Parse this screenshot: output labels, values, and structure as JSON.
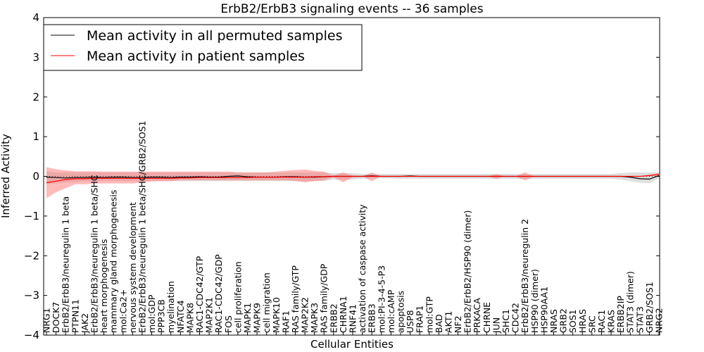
{
  "chart_data": {
    "type": "line",
    "title": "ErbB2/ErbB3 signaling events -- 36 samples",
    "xlabel": "Cellular Entities",
    "ylabel": "Inferred Activity",
    "ylim": [
      -4,
      4
    ],
    "yticks": [
      "4",
      "3",
      "2",
      "1",
      "0",
      "−1",
      "−2",
      "−3",
      "−4"
    ],
    "grid": false,
    "legend_position": "top-left",
    "categories": [
      "NRG1",
      "DOCK7",
      "ErbB2/ErbB3/neuregulin 1 beta",
      "PTPN11",
      "JAK2",
      "ErbB2/ErbB3/neuregulin 1 beta/SHC",
      "heart morphogenesis",
      "mammary gland morphogenesis",
      "mol:Ca2+",
      "nervous system development",
      "ErbB2/ErbB3/neuregulin 1 beta/SHC/GRB2/SOS1",
      "mol:GDP",
      "PPP3CB",
      "myelination",
      "NFATC4",
      "MAPK8",
      "RAC1-CDC42/GTP",
      "MAP2K1",
      "RAC1-CDC42/GDP",
      "FOS",
      "cell proliferation",
      "MAPK1",
      "MAPK9",
      "cell migration",
      "MAPK10",
      "RAF1",
      "RAS family/GTP",
      "MAP2K2",
      "MAPK3",
      "RAS family/GDP",
      "ERBB2",
      "CHRNA1",
      "RNF41",
      "activation of caspase activity",
      "ERBB3",
      "mol:PI-3-4-5-P3",
      "mol:cAMP",
      "apoptosis",
      "USP8",
      "FRAP1",
      "mol:GTP",
      "BAD",
      "AKT1",
      "NF2",
      "ErbB2/ErbB2/HSP90 (dimer)",
      "PRKACA",
      "CHRNE",
      "JUN",
      "SHC1",
      "CDC42",
      "ErbB2/ErbB3/neuregulin 2",
      "HSP90 (dimer)",
      "HSP90AA1",
      "NRAS",
      "GRB2",
      "SOS1",
      "HRAS",
      "SRC",
      "RAC1",
      "KRAS",
      "ERBB2IP",
      "STAT3 (dimer)",
      "STAT3",
      "GRB2/SOS1",
      "NRG2"
    ],
    "series": [
      {
        "name": "Mean activity in all permuted samples",
        "color": "#000000",
        "values": [
          -0.02,
          -0.03,
          -0.04,
          -0.03,
          -0.03,
          -0.02,
          -0.03,
          -0.02,
          -0.02,
          -0.03,
          -0.03,
          -0.02,
          -0.02,
          -0.03,
          -0.02,
          -0.02,
          -0.01,
          -0.02,
          -0.02,
          0.0,
          0.01,
          -0.01,
          -0.02,
          -0.02,
          -0.02,
          -0.01,
          -0.01,
          -0.02,
          -0.02,
          -0.01,
          0.0,
          0.0,
          0.0,
          0.0,
          0.01,
          0.0,
          0.0,
          0.0,
          0.01,
          0.0,
          0.0,
          0.0,
          0.0,
          0.0,
          0.0,
          0.0,
          0.0,
          0.0,
          0.0,
          0.0,
          0.0,
          0.0,
          0.0,
          0.0,
          0.0,
          0.0,
          0.0,
          0.0,
          0.0,
          0.0,
          0.0,
          -0.02,
          -0.06,
          -0.07,
          0.02
        ],
        "band_low": [
          -0.2,
          -0.18,
          -0.15,
          -0.14,
          -0.13,
          -0.12,
          -0.12,
          -0.12,
          -0.12,
          -0.12,
          -0.12,
          -0.12,
          -0.12,
          -0.12,
          -0.12,
          -0.12,
          -0.12,
          -0.12,
          -0.12,
          -0.12,
          -0.12,
          -0.12,
          -0.12,
          -0.12,
          -0.12,
          -0.12,
          -0.12,
          -0.12,
          -0.12,
          -0.12,
          -0.08,
          -0.08,
          -0.08,
          -0.06,
          -0.05,
          -0.05,
          -0.05,
          -0.06,
          -0.06,
          -0.06,
          -0.06,
          -0.06,
          -0.06,
          -0.06,
          -0.06,
          -0.06,
          -0.06,
          -0.06,
          -0.06,
          -0.06,
          -0.06,
          -0.06,
          -0.06,
          -0.06,
          -0.06,
          -0.06,
          -0.06,
          -0.06,
          -0.06,
          -0.06,
          -0.08,
          -0.12,
          -0.16,
          -0.17,
          -0.05
        ],
        "band_high": [
          0.12,
          0.1,
          0.1,
          0.1,
          0.1,
          0.1,
          0.1,
          0.1,
          0.1,
          0.1,
          0.1,
          0.1,
          0.1,
          0.1,
          0.1,
          0.1,
          0.1,
          0.1,
          0.1,
          0.1,
          0.1,
          0.1,
          0.1,
          0.1,
          0.1,
          0.1,
          0.1,
          0.1,
          0.1,
          0.1,
          0.08,
          0.08,
          0.08,
          0.06,
          0.06,
          0.06,
          0.06,
          0.06,
          0.06,
          0.06,
          0.06,
          0.06,
          0.06,
          0.06,
          0.06,
          0.06,
          0.06,
          0.06,
          0.06,
          0.06,
          0.06,
          0.06,
          0.06,
          0.06,
          0.06,
          0.06,
          0.06,
          0.06,
          0.06,
          0.06,
          0.08,
          0.1,
          0.1,
          0.1,
          0.1
        ]
      },
      {
        "name": "Mean activity in patient samples",
        "color": "#ff0000",
        "values": [
          -0.16,
          -0.12,
          -0.08,
          -0.06,
          -0.06,
          -0.05,
          -0.05,
          -0.05,
          -0.05,
          -0.05,
          -0.05,
          -0.05,
          -0.05,
          -0.05,
          -0.04,
          -0.04,
          -0.03,
          -0.03,
          -0.03,
          -0.03,
          -0.03,
          -0.03,
          -0.02,
          -0.02,
          -0.02,
          -0.02,
          -0.02,
          -0.02,
          -0.01,
          -0.01,
          0.0,
          0.0,
          0.0,
          0.0,
          0.0,
          0.0,
          0.0,
          0.0,
          0.0,
          0.0,
          0.0,
          0.0,
          0.0,
          0.0,
          0.0,
          0.0,
          0.0,
          0.0,
          0.0,
          0.0,
          0.0,
          0.0,
          0.0,
          0.0,
          0.0,
          0.0,
          0.0,
          0.0,
          0.0,
          0.0,
          0.0,
          0.0,
          0.0,
          0.02,
          0.05
        ],
        "band_low": [
          -0.55,
          -0.4,
          -0.3,
          -0.2,
          -0.2,
          -0.18,
          -0.18,
          -0.18,
          -0.18,
          -0.18,
          -0.15,
          -0.13,
          -0.12,
          -0.12,
          -0.1,
          -0.1,
          -0.1,
          -0.1,
          -0.1,
          -0.1,
          -0.1,
          -0.1,
          -0.1,
          -0.1,
          -0.1,
          -0.1,
          -0.12,
          -0.15,
          -0.12,
          -0.1,
          -0.02,
          -0.15,
          -0.02,
          0.0,
          -0.12,
          0.0,
          0.0,
          0.0,
          0.0,
          0.0,
          0.0,
          0.0,
          0.0,
          0.0,
          0.0,
          0.0,
          0.0,
          -0.06,
          0.0,
          0.0,
          -0.1,
          0.0,
          0.0,
          0.0,
          0.0,
          0.0,
          0.0,
          0.0,
          0.0,
          0.0,
          0.0,
          0.0,
          0.0,
          0.0,
          0.02
        ],
        "band_high": [
          0.23,
          0.18,
          0.15,
          0.13,
          0.13,
          0.13,
          0.12,
          0.12,
          0.12,
          0.12,
          0.12,
          0.12,
          0.12,
          0.12,
          0.12,
          0.12,
          0.12,
          0.12,
          0.12,
          0.12,
          0.1,
          0.1,
          0.1,
          0.1,
          0.12,
          0.14,
          0.16,
          0.17,
          0.14,
          0.12,
          0.02,
          0.1,
          0.02,
          0.0,
          0.1,
          0.0,
          0.0,
          0.0,
          0.0,
          0.0,
          0.0,
          0.0,
          0.0,
          0.0,
          0.0,
          0.0,
          0.0,
          0.06,
          0.0,
          0.0,
          0.1,
          0.0,
          0.0,
          0.0,
          0.0,
          0.0,
          0.0,
          0.0,
          0.0,
          0.0,
          0.0,
          0.0,
          0.0,
          0.04,
          0.08
        ]
      }
    ]
  }
}
